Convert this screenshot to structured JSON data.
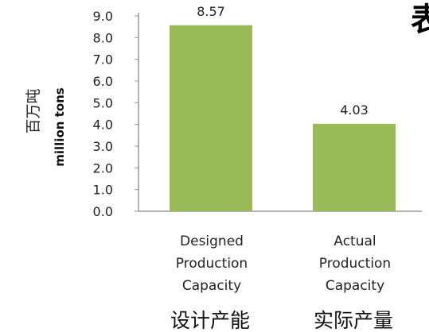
{
  "chart_data": {
    "type": "bar",
    "categories": [
      {
        "en": [
          "Designed",
          "Production",
          "Capacity"
        ],
        "cn": "设计产能"
      },
      {
        "en": [
          "Actual",
          "Production",
          "Capacity"
        ],
        "cn": "实际产量"
      }
    ],
    "values": [
      8.57,
      4.03
    ],
    "value_labels": [
      "8.57",
      "4.03"
    ],
    "yticks": [
      "0.0",
      "1.0",
      "2.0",
      "3.0",
      "4.0",
      "5.0",
      "6.0",
      "7.0",
      "8.0",
      "9.0"
    ],
    "ylim": [
      0,
      9
    ],
    "ylabel_cn": "百万吨",
    "ylabel_en": "million tons",
    "bar_color": "#9bbb59",
    "axis_color": "#999999",
    "grid": false,
    "legend": "none"
  },
  "corner_text": "表"
}
